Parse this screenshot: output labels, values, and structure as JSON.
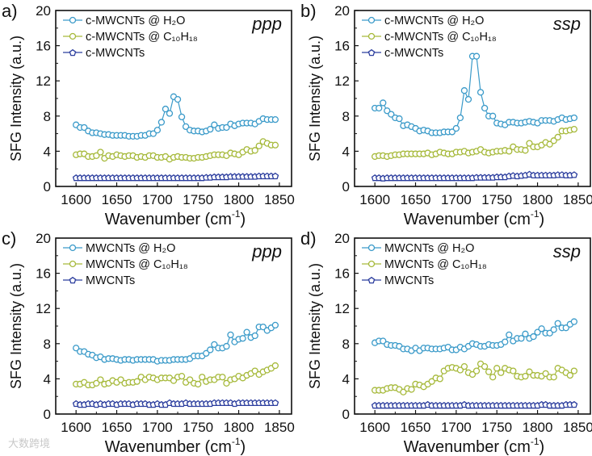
{
  "chart_data": [
    {
      "type": "line",
      "panel_label": "a)",
      "polarization": "ppp",
      "xlabel": "Wavenumber (cm",
      "xlabel_sup": "-1",
      "xlabel_tail": ")",
      "ylabel": "SFG Intensity (a.u.)",
      "xlim": [
        1575,
        1865
      ],
      "ylim": [
        0,
        20
      ],
      "xticks": [
        1600,
        1650,
        1700,
        1750,
        1800,
        1850
      ],
      "yticks": [
        0,
        4,
        8,
        12,
        16,
        20
      ],
      "legend_position": "top-left",
      "x_start": 1600,
      "x_step": 5,
      "series": [
        {
          "name": "c-MWCNTs @ H₂O",
          "color": "#3a9ac9",
          "marker": "circle",
          "values": [
            7.0,
            6.7,
            6.7,
            6.3,
            6.1,
            6.1,
            6.0,
            5.9,
            5.9,
            5.8,
            5.8,
            5.8,
            5.8,
            5.7,
            5.7,
            5.7,
            5.8,
            5.8,
            6.0,
            6.0,
            6.4,
            7.3,
            8.8,
            8.3,
            10.2,
            9.9,
            7.9,
            6.8,
            6.4,
            6.3,
            6.3,
            6.2,
            6.3,
            6.5,
            7.0,
            6.6,
            6.7,
            6.7,
            7.1,
            6.9,
            7.1,
            7.2,
            7.2,
            7.2,
            7.1,
            7.4,
            7.7,
            7.6,
            7.6,
            7.6
          ]
        },
        {
          "name": "c-MWCNTs @ C₁₀H₁₈",
          "color": "#a6b93a",
          "marker": "circle",
          "values": [
            3.6,
            3.7,
            3.7,
            3.4,
            3.4,
            3.5,
            3.9,
            3.2,
            3.5,
            3.4,
            3.6,
            3.5,
            3.4,
            3.5,
            3.5,
            3.3,
            3.4,
            3.3,
            3.5,
            3.5,
            3.3,
            3.3,
            3.4,
            3.1,
            3.3,
            3.4,
            3.3,
            3.3,
            3.2,
            3.2,
            3.3,
            3.3,
            3.4,
            3.5,
            3.6,
            3.6,
            3.6,
            3.5,
            3.8,
            3.7,
            3.6,
            3.9,
            4.2,
            4.0,
            4.1,
            4.6,
            5.1,
            4.9,
            4.7,
            4.7
          ]
        },
        {
          "name": "c-MWCNTs",
          "color": "#2b3d9e",
          "marker": "pentagon",
          "values": [
            1.0,
            1.0,
            1.0,
            1.0,
            1.0,
            1.0,
            1.0,
            1.0,
            1.0,
            1.0,
            1.0,
            1.0,
            1.0,
            1.0,
            1.0,
            1.0,
            1.0,
            1.0,
            1.0,
            1.0,
            1.0,
            1.0,
            1.0,
            1.0,
            1.0,
            1.0,
            1.0,
            1.0,
            1.0,
            1.0,
            1.0,
            1.0,
            1.05,
            1.05,
            1.1,
            1.1,
            1.1,
            1.1,
            1.15,
            1.15,
            1.15,
            1.15,
            1.15,
            1.15,
            1.15,
            1.2,
            1.2,
            1.2,
            1.2,
            1.2
          ]
        }
      ]
    },
    {
      "type": "line",
      "panel_label": "b)",
      "polarization": "ssp",
      "xlabel": "Wavenumber (cm",
      "xlabel_sup": "-1",
      "xlabel_tail": ")",
      "ylabel": "SFG Intensity (a.u.)",
      "xlim": [
        1575,
        1865
      ],
      "ylim": [
        0,
        20
      ],
      "xticks": [
        1600,
        1650,
        1700,
        1750,
        1800,
        1850
      ],
      "yticks": [
        0,
        4,
        8,
        12,
        16,
        20
      ],
      "legend_position": "top-left",
      "x_start": 1600,
      "x_step": 5,
      "series": [
        {
          "name": "c-MWCNTs @ H₂O",
          "color": "#3a9ac9",
          "marker": "circle",
          "values": [
            8.9,
            8.9,
            9.5,
            8.6,
            8.2,
            7.8,
            7.7,
            6.9,
            7.0,
            6.8,
            6.6,
            6.3,
            6.4,
            6.3,
            6.1,
            6.1,
            6.1,
            6.2,
            6.2,
            6.2,
            6.6,
            7.8,
            10.9,
            9.9,
            14.8,
            14.8,
            10.7,
            8.9,
            8.0,
            8.0,
            7.2,
            7.1,
            7.0,
            7.3,
            7.3,
            7.2,
            7.2,
            7.3,
            7.4,
            7.3,
            7.2,
            7.5,
            7.5,
            7.5,
            7.4,
            7.6,
            7.8,
            7.6,
            7.7,
            7.8
          ]
        },
        {
          "name": "c-MWCNTs @ C₁₀H₁₈",
          "color": "#a6b93a",
          "marker": "circle",
          "values": [
            3.4,
            3.5,
            3.5,
            3.4,
            3.5,
            3.6,
            3.6,
            3.7,
            3.7,
            3.7,
            3.7,
            3.7,
            3.7,
            3.8,
            3.6,
            3.7,
            3.9,
            3.8,
            3.7,
            3.7,
            3.9,
            3.9,
            4.0,
            3.8,
            3.9,
            4.0,
            4.2,
            3.9,
            3.8,
            3.9,
            4.0,
            4.0,
            4.1,
            4.0,
            4.5,
            4.2,
            4.2,
            4.1,
            4.9,
            4.5,
            4.5,
            4.7,
            5.0,
            4.8,
            5.2,
            5.6,
            6.3,
            6.3,
            6.4,
            6.5
          ]
        },
        {
          "name": "c-MWCNTs",
          "color": "#2b3d9e",
          "marker": "pentagon",
          "values": [
            1.0,
            1.0,
            0.95,
            1.0,
            1.0,
            1.0,
            1.0,
            1.0,
            1.0,
            1.0,
            1.0,
            1.0,
            1.0,
            1.0,
            1.0,
            1.0,
            1.0,
            1.0,
            1.0,
            1.0,
            1.0,
            1.0,
            1.0,
            1.0,
            1.0,
            1.05,
            1.05,
            1.05,
            1.05,
            1.05,
            1.1,
            1.1,
            1.1,
            1.2,
            1.25,
            1.2,
            1.25,
            1.3,
            1.4,
            1.3,
            1.3,
            1.3,
            1.3,
            1.3,
            1.3,
            1.35,
            1.35,
            1.3,
            1.3,
            1.35
          ]
        }
      ]
    },
    {
      "type": "line",
      "panel_label": "c)",
      "polarization": "ppp",
      "xlabel": "Wavenumber (cm",
      "xlabel_sup": "-1",
      "xlabel_tail": ")",
      "ylabel": "SFG Intensity (a.u.)",
      "xlim": [
        1575,
        1865
      ],
      "ylim": [
        0,
        20
      ],
      "xticks": [
        1600,
        1650,
        1700,
        1750,
        1800,
        1850
      ],
      "yticks": [
        0,
        4,
        8,
        12,
        16,
        20
      ],
      "legend_position": "top-left",
      "x_start": 1600,
      "x_step": 5,
      "series": [
        {
          "name": "MWCNTs @ H₂O",
          "color": "#3a9ac9",
          "marker": "circle",
          "values": [
            7.5,
            7.1,
            7.1,
            6.8,
            6.7,
            6.4,
            6.5,
            6.2,
            6.3,
            6.3,
            6.2,
            6.1,
            6.2,
            6.2,
            6.1,
            6.2,
            6.2,
            6.2,
            6.2,
            6.2,
            6.0,
            6.1,
            6.1,
            6.1,
            6.2,
            6.2,
            6.2,
            6.2,
            6.3,
            6.6,
            6.6,
            6.6,
            6.9,
            7.3,
            7.9,
            7.5,
            7.5,
            7.7,
            9.0,
            8.2,
            8.5,
            8.6,
            9.3,
            8.7,
            8.9,
            9.9,
            9.9,
            9.5,
            9.8,
            10.1
          ]
        },
        {
          "name": "MWCNTs @ C₁₀H₁₈",
          "color": "#a6b93a",
          "marker": "circle",
          "values": [
            3.4,
            3.4,
            3.6,
            3.3,
            3.3,
            3.5,
            3.9,
            3.4,
            3.5,
            3.8,
            3.6,
            3.9,
            3.5,
            3.6,
            3.6,
            3.7,
            4.2,
            3.9,
            4.2,
            4.1,
            3.9,
            4.1,
            4.1,
            4.1,
            3.8,
            4.2,
            4.3,
            3.6,
            3.9,
            3.5,
            3.4,
            4.2,
            3.7,
            3.9,
            3.9,
            4.2,
            4.2,
            3.5,
            3.9,
            4.0,
            4.3,
            4.1,
            4.4,
            4.6,
            4.9,
            4.5,
            4.8,
            5.0,
            5.2,
            5.5
          ]
        },
        {
          "name": "MWCNTs",
          "color": "#2b3d9e",
          "marker": "pentagon",
          "values": [
            1.2,
            1.1,
            1.1,
            1.2,
            1.2,
            1.1,
            1.2,
            1.1,
            1.2,
            1.2,
            1.1,
            1.2,
            1.2,
            1.2,
            1.1,
            1.2,
            1.2,
            1.2,
            1.1,
            1.1,
            1.2,
            1.1,
            1.1,
            1.3,
            1.2,
            1.2,
            1.2,
            1.3,
            1.2,
            1.2,
            1.2,
            1.2,
            1.2,
            1.2,
            1.3,
            1.3,
            1.3,
            1.3,
            1.3,
            1.2,
            1.3,
            1.3,
            1.3,
            1.3,
            1.3,
            1.3,
            1.3,
            1.3,
            1.3,
            1.3
          ]
        }
      ]
    },
    {
      "type": "line",
      "panel_label": "d)",
      "polarization": "ssp",
      "xlabel": "Wavenumber (cm",
      "xlabel_sup": "-1",
      "xlabel_tail": ")",
      "ylabel": "SFG Intensity (a.u.)",
      "xlim": [
        1575,
        1865
      ],
      "ylim": [
        0,
        20
      ],
      "xticks": [
        1600,
        1650,
        1700,
        1750,
        1800,
        1850
      ],
      "yticks": [
        0,
        4,
        8,
        12,
        16,
        20
      ],
      "legend_position": "top-left",
      "x_start": 1600,
      "x_step": 5,
      "series": [
        {
          "name": "MWCNTs @ H₂O",
          "color": "#3a9ac9",
          "marker": "circle",
          "values": [
            8.1,
            8.3,
            8.3,
            7.9,
            7.8,
            7.8,
            7.7,
            7.4,
            7.4,
            7.2,
            7.5,
            7.2,
            7.5,
            7.5,
            7.4,
            7.4,
            7.4,
            7.5,
            7.6,
            7.3,
            7.3,
            7.6,
            7.4,
            7.7,
            8.0,
            7.9,
            7.7,
            7.7,
            7.9,
            7.8,
            7.8,
            7.9,
            8.2,
            9.0,
            8.3,
            8.6,
            8.6,
            9.1,
            8.6,
            8.8,
            9.3,
            9.7,
            9.2,
            9.2,
            9.6,
            10.3,
            9.8,
            9.8,
            10.2,
            10.5
          ]
        },
        {
          "name": "MWCNTs @ C₁₀H₁₈",
          "color": "#a6b93a",
          "marker": "circle",
          "values": [
            2.7,
            2.7,
            2.7,
            2.9,
            3.0,
            3.0,
            2.8,
            2.5,
            2.9,
            2.8,
            3.4,
            3.3,
            3.1,
            3.4,
            3.7,
            4.1,
            4.0,
            4.9,
            5.2,
            5.3,
            5.2,
            5.0,
            5.4,
            4.7,
            4.5,
            4.9,
            5.7,
            5.4,
            4.8,
            4.2,
            5.2,
            4.7,
            5.2,
            5.0,
            4.9,
            4.3,
            4.2,
            4.3,
            4.8,
            4.4,
            4.4,
            4.3,
            4.6,
            4.2,
            4.2,
            5.2,
            5.0,
            4.7,
            4.4,
            4.9
          ]
        },
        {
          "name": "MWCNTs",
          "color": "#2b3d9e",
          "marker": "pentagon",
          "values": [
            1.0,
            1.0,
            1.0,
            1.0,
            1.0,
            1.0,
            1.0,
            1.0,
            1.0,
            1.0,
            1.0,
            1.0,
            1.0,
            1.1,
            1.0,
            1.0,
            1.0,
            1.0,
            1.0,
            1.0,
            1.0,
            1.0,
            1.1,
            1.0,
            1.0,
            1.0,
            1.0,
            1.0,
            1.0,
            1.0,
            1.0,
            1.0,
            1.0,
            1.0,
            1.0,
            1.0,
            1.0,
            1.0,
            1.0,
            1.0,
            1.0,
            1.1,
            1.1,
            1.0,
            1.0,
            1.0,
            1.0,
            1.1,
            1.1,
            1.1
          ]
        }
      ]
    }
  ],
  "watermark": "大数跨境"
}
